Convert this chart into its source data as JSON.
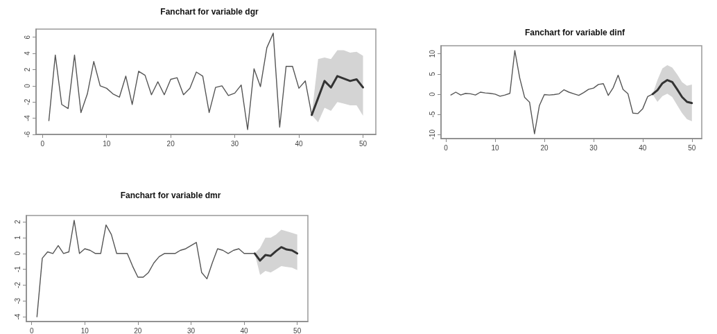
{
  "chart_data": [
    {
      "type": "line",
      "title": "Fanchart for variable dgr",
      "xlim": [
        -1,
        52
      ],
      "xticks": [
        0,
        10,
        20,
        30,
        40,
        50
      ],
      "ylim": [
        -6,
        7
      ],
      "yticks": [
        -6,
        -4,
        -2,
        0,
        2,
        4,
        6
      ],
      "grid": false,
      "marker": "none",
      "line_style": "solid",
      "series": [
        {
          "color": "#555555",
          "x": [
            1,
            2,
            3,
            4,
            5,
            6,
            7,
            8,
            9,
            10,
            11,
            12,
            13,
            14,
            15,
            16,
            17,
            18,
            19,
            20,
            21,
            22,
            23,
            24,
            25,
            26,
            27,
            28,
            29,
            30,
            31,
            32,
            33,
            34,
            35,
            36,
            37,
            38,
            39,
            40,
            41,
            42
          ],
          "values": [
            -4.3,
            3.8,
            -2.3,
            -2.8,
            3.8,
            -3.3,
            -1,
            3,
            0,
            -0.3,
            -1,
            -1.4,
            1.2,
            -2.3,
            1.8,
            1.3,
            -1.1,
            0.5,
            -1.1,
            0.8,
            1,
            -1.1,
            -0.3,
            1.7,
            1.2,
            -3.3,
            -0.2,
            0,
            -1.2,
            -0.9,
            0.1,
            -5.4,
            2.1,
            -0.1,
            4.7,
            6.5,
            -5.1,
            2.4,
            2.4,
            -0.3,
            0.6,
            -3.6
          ]
        },
        {
          "color": "#333333",
          "x": [
            42,
            43,
            44,
            45,
            46,
            47,
            48,
            49,
            50
          ],
          "values": [
            -3.6,
            -1.5,
            0.6,
            -0.2,
            1.2,
            0.9,
            0.6,
            0.8,
            -0.2
          ],
          "lower": [
            -3.6,
            -4.5,
            -2.7,
            -3.1,
            -2,
            -2.2,
            -2.4,
            -2.4,
            -3.7
          ],
          "upper": [
            -3.6,
            3.3,
            3.5,
            3.3,
            4.4,
            4.4,
            4.1,
            4.2,
            3.7
          ]
        }
      ]
    },
    {
      "type": "line",
      "title": "Fanchart for variable dinf",
      "xlim": [
        -1,
        52
      ],
      "xticks": [
        0,
        10,
        20,
        30,
        40,
        50
      ],
      "ylim": [
        -11,
        12
      ],
      "yticks": [
        -10,
        -5,
        0,
        5,
        10
      ],
      "grid": false,
      "marker": "none",
      "line_style": "solid",
      "series": [
        {
          "color": "#555555",
          "x": [
            1,
            2,
            3,
            4,
            5,
            6,
            7,
            8,
            9,
            10,
            11,
            12,
            13,
            14,
            15,
            16,
            17,
            18,
            19,
            20,
            21,
            22,
            23,
            24,
            25,
            26,
            27,
            28,
            29,
            30,
            31,
            32,
            33,
            34,
            35,
            36,
            37,
            38,
            39,
            40,
            41,
            42
          ],
          "values": [
            -0.2,
            0.5,
            -0.2,
            0.2,
            0.1,
            -0.2,
            0.5,
            0.3,
            0.2,
            0,
            -0.5,
            -0.2,
            0.2,
            10.8,
            4,
            -0.8,
            -2,
            -9.8,
            -2.8,
            -0.1,
            -0.2,
            -0.1,
            0.1,
            1.1,
            0.5,
            0.1,
            -0.3,
            0.4,
            1.2,
            1.5,
            2.4,
            2.6,
            -0.3,
            1.6,
            4.7,
            1.2,
            0.1,
            -4.7,
            -4.8,
            -3.6,
            -0.6,
            0
          ]
        },
        {
          "color": "#333333",
          "x": [
            42,
            43,
            44,
            45,
            46,
            47,
            48,
            49,
            50
          ],
          "values": [
            0,
            1,
            2.7,
            3.5,
            3,
            1.2,
            -0.7,
            -1.9,
            -2.2
          ],
          "lower": [
            0,
            -1.9,
            -0.5,
            0.1,
            -0.7,
            -2.7,
            -4.7,
            -6.2,
            -6.7
          ],
          "upper": [
            0,
            3.5,
            6.4,
            7.2,
            6.6,
            4.9,
            3,
            2.1,
            2.4
          ]
        }
      ]
    },
    {
      "type": "line",
      "title": "Fanchart for variable dmr",
      "xlim": [
        -1,
        52
      ],
      "xticks": [
        0,
        10,
        20,
        30,
        40,
        50
      ],
      "ylim": [
        -4.3,
        2.4
      ],
      "yticks": [
        -4,
        -3,
        -2,
        -1,
        0,
        1,
        2
      ],
      "grid": false,
      "marker": "none",
      "line_style": "solid",
      "series": [
        {
          "color": "#555555",
          "x": [
            1,
            2,
            3,
            4,
            5,
            6,
            7,
            8,
            9,
            10,
            11,
            12,
            13,
            14,
            15,
            16,
            17,
            18,
            19,
            20,
            21,
            22,
            23,
            24,
            25,
            26,
            27,
            28,
            29,
            30,
            31,
            32,
            33,
            34,
            35,
            36,
            37,
            38,
            39,
            40,
            41,
            42
          ],
          "values": [
            -4,
            -0.3,
            0.1,
            0,
            0.5,
            0,
            0.1,
            2.1,
            0,
            0.3,
            0.2,
            0,
            0,
            1.8,
            1.2,
            0,
            0,
            0,
            -0.8,
            -1.5,
            -1.5,
            -1.2,
            -0.6,
            -0.2,
            0,
            0,
            0,
            0.2,
            0.3,
            0.5,
            0.7,
            -1.2,
            -1.6,
            -0.6,
            0.3,
            0.2,
            0,
            0.2,
            0.3,
            0,
            0,
            0
          ]
        },
        {
          "color": "#333333",
          "x": [
            42,
            43,
            44,
            45,
            46,
            47,
            48,
            49,
            50
          ],
          "values": [
            0,
            -0.45,
            -0.1,
            -0.15,
            0.15,
            0.4,
            0.25,
            0.2,
            0
          ],
          "lower": [
            0,
            -1.35,
            -1.1,
            -1.2,
            -1,
            -0.8,
            -0.85,
            -0.9,
            -1.05
          ],
          "upper": [
            0,
            0.35,
            1,
            1,
            1.2,
            1.5,
            1.4,
            1.3,
            1.2
          ]
        }
      ]
    }
  ]
}
